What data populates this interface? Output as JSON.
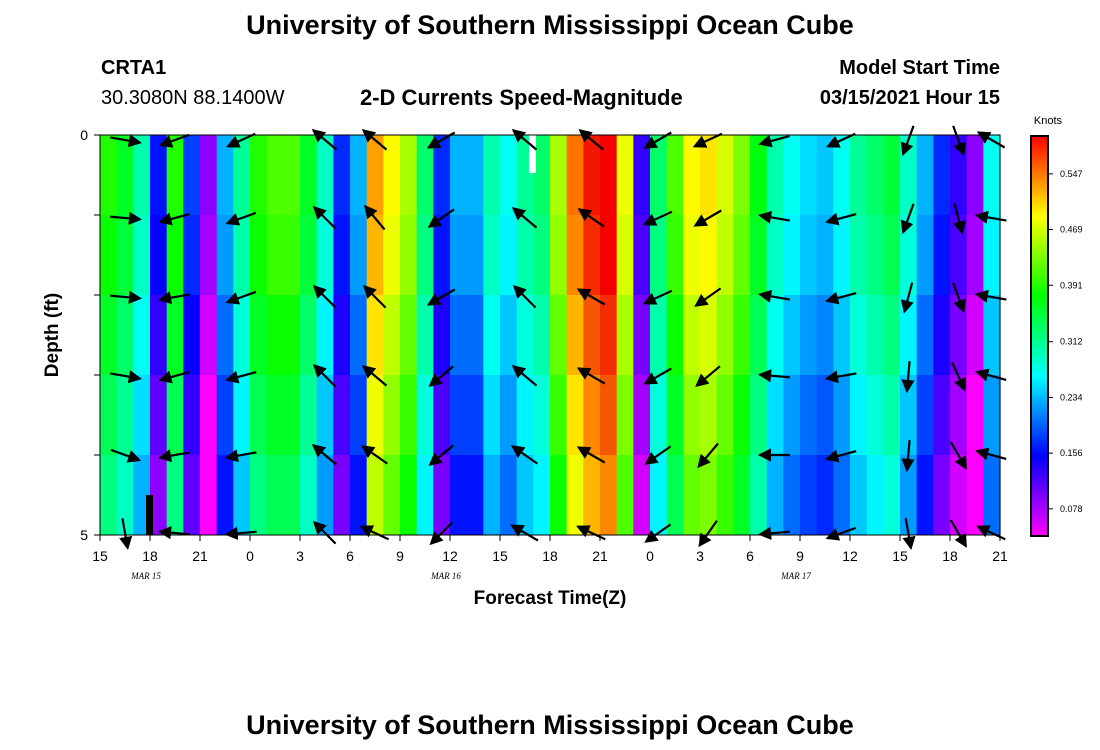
{
  "header": {
    "title": "University of Southern Mississippi Ocean Cube",
    "station_id": "CRTA1",
    "station_coords": "30.3080N 88.1400W",
    "chart_title": "2-D Currents Speed-Magnitude",
    "model_start_label": "Model Start Time",
    "model_start_value": "03/15/2021 Hour 15"
  },
  "footer": {
    "title": "University of Southern Mississippi Ocean Cube"
  },
  "chart_data": {
    "type": "heatmap",
    "title": "2-D Currents Speed-Magnitude",
    "xlabel": "Forecast Time(Z)",
    "ylabel": "Depth (ft)",
    "y_ticks": [
      "0",
      "5"
    ],
    "ylim": [
      0,
      5
    ],
    "x_ticks": [
      "15",
      "18",
      "21",
      "0",
      "3",
      "6",
      "9",
      "12",
      "15",
      "18",
      "21",
      "0",
      "3",
      "6",
      "9",
      "12",
      "15",
      "18",
      "21"
    ],
    "x_dates": [
      {
        "label": "MAR 15",
        "tick_index": 1
      },
      {
        "label": "MAR 16",
        "tick_index": 7
      },
      {
        "label": "MAR 17",
        "tick_index": 14
      }
    ],
    "hours": 54,
    "depth_layers": 5,
    "colorbar": {
      "unit": "Knots",
      "labels": [
        "0.547",
        "0.469",
        "0.391",
        "0.312",
        "0.234",
        "0.156",
        "0.078"
      ],
      "min": 0.04,
      "max": 0.6
    },
    "speed_profile": [
      0.36,
      0.33,
      0.27,
      0.13,
      0.36,
      0.15,
      0.06,
      0.2,
      0.28,
      0.36,
      0.38,
      0.38,
      0.33,
      0.26,
      0.14,
      0.2,
      0.5,
      0.46,
      0.42,
      0.3,
      0.14,
      0.2,
      0.2,
      0.27,
      0.24,
      0.28,
      0.3,
      0.42,
      0.52,
      0.56,
      0.58,
      0.45,
      0.1,
      0.3,
      0.38,
      0.46,
      0.47,
      0.44,
      0.4,
      0.34,
      0.27,
      0.24,
      0.22,
      0.21,
      0.24,
      0.28,
      0.3,
      0.32,
      0.26,
      0.2,
      0.14,
      0.1,
      0.06,
      0.24
    ],
    "depth_offsets": [
      0.03,
      0.02,
      0.0,
      -0.02,
      -0.04
    ],
    "vectors": [
      {
        "hour": 1,
        "dirs": [
          100,
          95,
          95,
          100,
          110,
          170
        ]
      },
      {
        "hour": 4,
        "dirs": [
          250,
          255,
          260,
          255,
          260,
          275
        ]
      },
      {
        "hour": 8,
        "dirs": [
          245,
          250,
          250,
          255,
          260,
          265
        ]
      },
      {
        "hour": 13,
        "dirs": [
          310,
          315,
          315,
          315,
          310,
          315
        ]
      },
      {
        "hour": 16,
        "dirs": [
          310,
          320,
          315,
          310,
          305,
          295
        ]
      },
      {
        "hour": 20,
        "dirs": [
          240,
          235,
          240,
          230,
          230,
          225
        ]
      },
      {
        "hour": 25,
        "dirs": [
          310,
          310,
          315,
          310,
          305,
          300
        ]
      },
      {
        "hour": 29,
        "dirs": [
          310,
          305,
          300,
          300,
          300,
          295
        ]
      },
      {
        "hour": 33,
        "dirs": [
          240,
          245,
          245,
          240,
          235,
          235
        ]
      },
      {
        "hour": 36,
        "dirs": [
          245,
          240,
          235,
          230,
          220,
          215
        ]
      },
      {
        "hour": 40,
        "dirs": [
          255,
          280,
          280,
          275,
          270,
          265
        ]
      },
      {
        "hour": 44,
        "dirs": [
          245,
          255,
          255,
          260,
          255,
          250
        ]
      },
      {
        "hour": 48,
        "dirs": [
          200,
          200,
          195,
          185,
          185,
          170
        ]
      },
      {
        "hour": 51,
        "dirs": [
          160,
          165,
          160,
          155,
          150,
          150
        ]
      },
      {
        "hour": 53,
        "dirs": [
          300,
          280,
          280,
          285,
          285,
          295
        ]
      }
    ]
  }
}
